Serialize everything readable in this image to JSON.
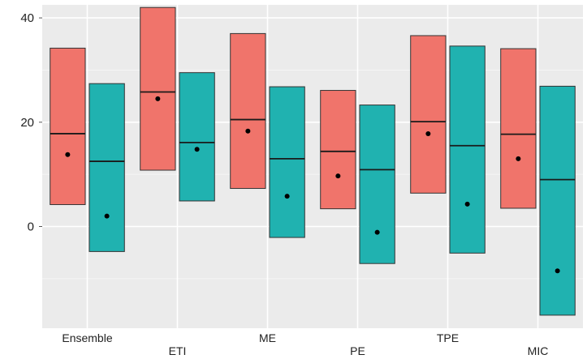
{
  "chart_data": {
    "type": "box",
    "categories": [
      "Ensemble",
      "ETI",
      "ME",
      "PE",
      "TPE",
      "MIC"
    ],
    "series": [
      {
        "color": "#F0746B",
        "boxes": [
          {
            "low": 4.2,
            "q_mid": 17.8,
            "high": 34.2,
            "mean": 13.8
          },
          {
            "low": 10.8,
            "q_mid": 25.8,
            "high": 42.0,
            "mean": 24.5
          },
          {
            "low": 7.3,
            "q_mid": 20.5,
            "high": 37.0,
            "mean": 18.3
          },
          {
            "low": 3.4,
            "q_mid": 14.4,
            "high": 26.1,
            "mean": 9.7
          },
          {
            "low": 6.4,
            "q_mid": 20.1,
            "high": 36.6,
            "mean": 17.8
          },
          {
            "low": 3.5,
            "q_mid": 17.7,
            "high": 34.1,
            "mean": 13.0
          }
        ]
      },
      {
        "color": "#20B2B0",
        "boxes": [
          {
            "low": -4.8,
            "q_mid": 12.5,
            "high": 27.4,
            "mean": 2.0
          },
          {
            "low": 4.9,
            "q_mid": 16.1,
            "high": 29.5,
            "mean": 14.8
          },
          {
            "low": -2.1,
            "q_mid": 13.0,
            "high": 26.8,
            "mean": 5.8
          },
          {
            "low": -7.1,
            "q_mid": 10.9,
            "high": 23.3,
            "mean": -1.1
          },
          {
            "low": -5.1,
            "q_mid": 15.5,
            "high": 34.6,
            "mean": 4.3
          },
          {
            "low": -17.0,
            "q_mid": 9.0,
            "high": 26.9,
            "mean": -8.5
          }
        ]
      }
    ],
    "yticks": [
      0,
      20,
      40
    ],
    "ylim": [
      -19.5,
      42.5
    ],
    "grid": true,
    "legend": "none"
  }
}
